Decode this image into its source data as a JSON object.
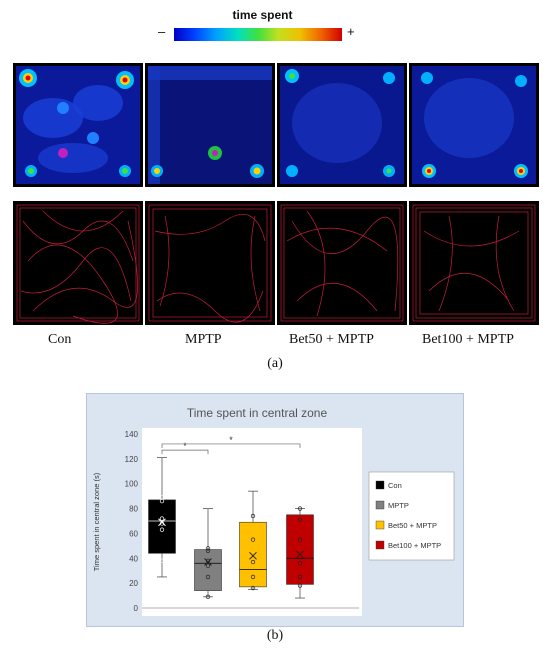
{
  "legend": {
    "title": "time spent",
    "minus": "–",
    "plus": "+"
  },
  "groups": [
    "Con",
    "MPTP",
    "Bet50 + MPTP",
    "Bet100 + MPTP"
  ],
  "panel_labels": {
    "a": "(a)",
    "b": "(b)"
  },
  "chart_data": {
    "type": "box",
    "title": "Time spent in central zone",
    "ylabel": "Time spent in  central zone (s)",
    "xlabel": "",
    "ylim": [
      0,
      140
    ],
    "yticks": [
      0,
      20,
      40,
      60,
      80,
      100,
      120,
      140
    ],
    "grid": false,
    "legend_position": "right",
    "significance": [
      {
        "from": "Con",
        "to": "MPTP",
        "label": "*"
      },
      {
        "from": "Con",
        "to": "Bet100 + MPTP",
        "label": "*"
      }
    ],
    "series": [
      {
        "name": "Con",
        "color": "#000000",
        "median_line": "#ffffff",
        "min": 25,
        "q1": 44,
        "median": 70,
        "q3": 87,
        "max": 121,
        "mean": 69,
        "points": [
          38,
          63,
          68,
          72,
          86,
          89
        ]
      },
      {
        "name": "MPTP",
        "color": "#808080",
        "median_line": "#000000",
        "min": 9,
        "q1": 14,
        "median": 36,
        "q3": 47,
        "max": 80,
        "mean": 37,
        "points": [
          9,
          25,
          34,
          38,
          46,
          48
        ]
      },
      {
        "name": "Bet50 + MPTP",
        "color": "#ffc000",
        "median_line": "#000000",
        "min": 15,
        "q1": 17,
        "median": 31,
        "q3": 69,
        "max": 94,
        "mean": 42,
        "points": [
          16,
          25,
          37,
          55,
          74
        ]
      },
      {
        "name": "Bet100 + MPTP",
        "color": "#c00000",
        "median_line": "#000000",
        "min": 8,
        "q1": 19,
        "median": 40,
        "q3": 75,
        "max": 80,
        "mean": 43,
        "points": [
          18,
          25,
          36,
          55,
          71,
          80
        ]
      }
    ]
  }
}
